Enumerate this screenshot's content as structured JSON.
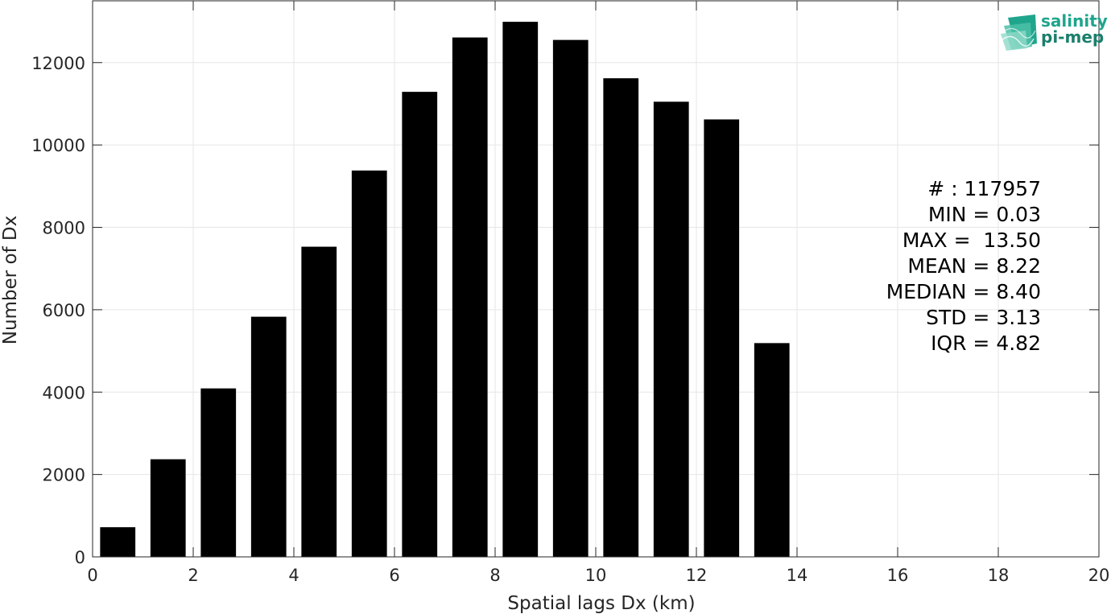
{
  "colors": {
    "bar": "#000000",
    "grid": "#e6e6e6",
    "axis": "#262626",
    "logo": "#1fa58c"
  },
  "logo": {
    "line1": "salinity",
    "line2": "pi-mep"
  },
  "stats": [
    "# : 117957",
    "MIN = 0.03",
    "MAX =  13.50",
    "MEAN = 8.22",
    "MEDIAN = 8.40",
    "STD = 3.13",
    "IQR = 4.82"
  ],
  "chart_data": {
    "type": "bar",
    "xlabel": "Spatial lags Dx (km)",
    "ylabel": "Number of Dx",
    "xlim": [
      0,
      20
    ],
    "ylim": [
      0,
      13500
    ],
    "grid": true,
    "x_ticks": [
      0,
      2,
      4,
      6,
      8,
      10,
      12,
      14,
      16,
      18,
      20
    ],
    "y_ticks": [
      0,
      2000,
      4000,
      6000,
      8000,
      10000,
      12000
    ],
    "bin_width": 1,
    "x": [
      0.5,
      1.5,
      2.5,
      3.5,
      4.5,
      5.5,
      6.5,
      7.5,
      8.5,
      9.5,
      10.5,
      11.5,
      12.5,
      13.5
    ],
    "values": [
      720,
      2370,
      4090,
      5830,
      7530,
      9380,
      11290,
      12610,
      12990,
      12550,
      11620,
      11050,
      10620,
      5190
    ]
  }
}
